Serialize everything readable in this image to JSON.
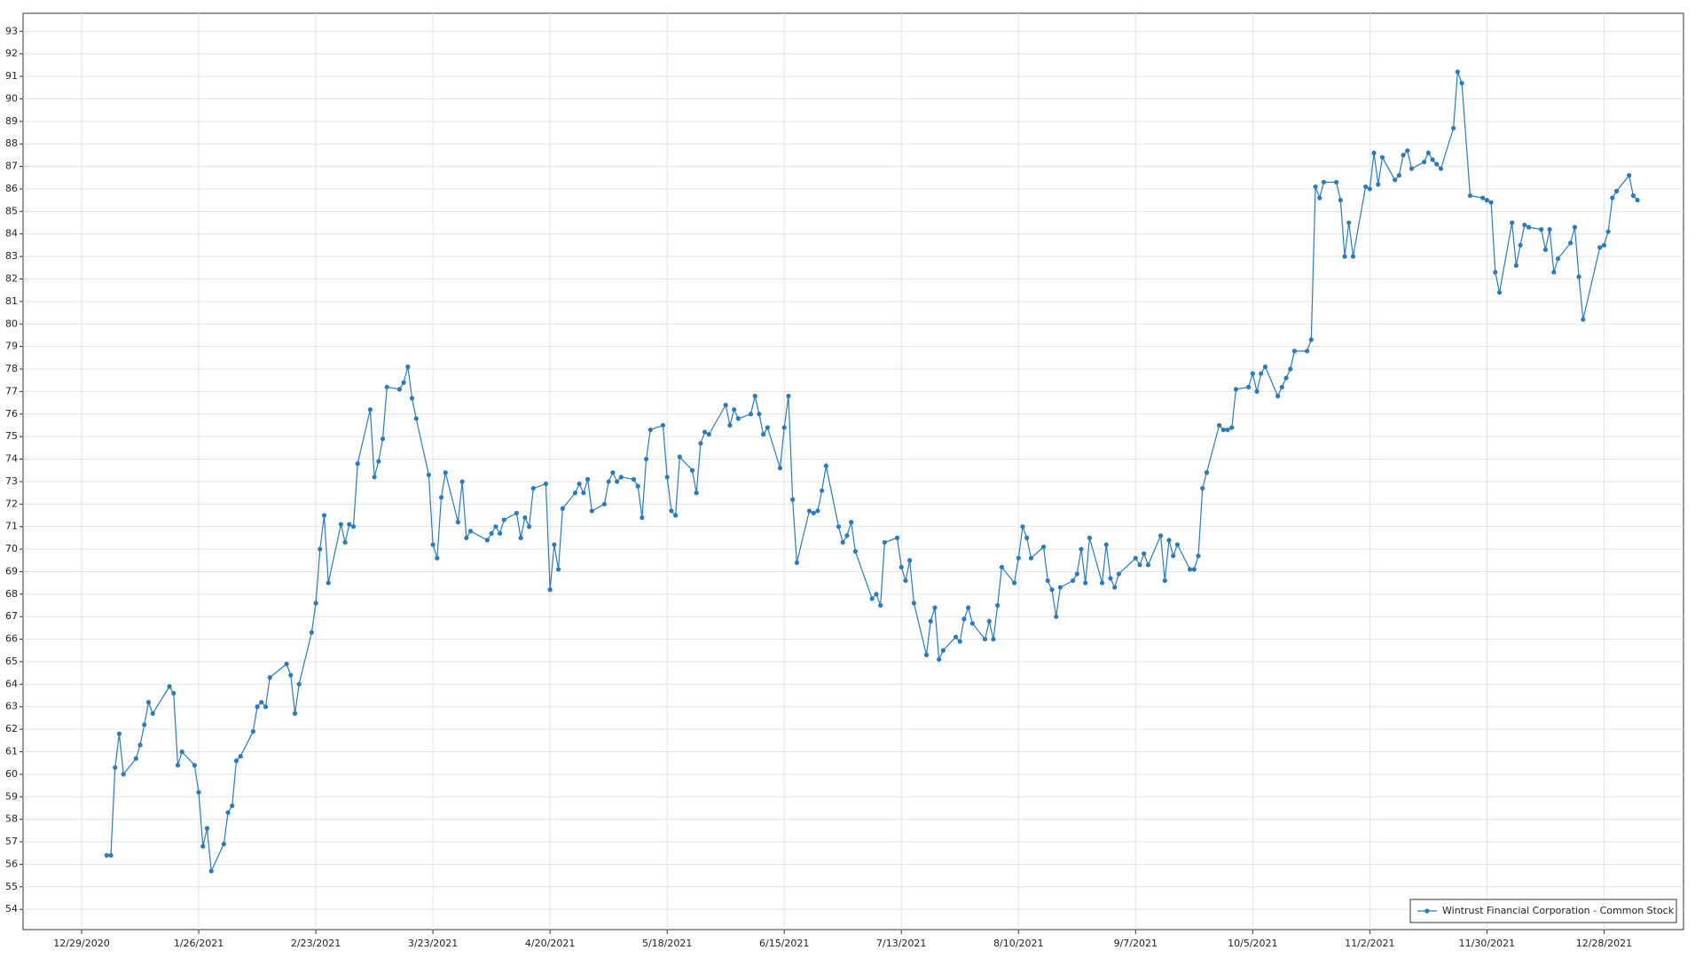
{
  "chart_data": {
    "type": "line",
    "x": [
      "2021-01-04",
      "2021-01-05",
      "2021-01-06",
      "2021-01-07",
      "2021-01-08",
      "2021-01-11",
      "2021-01-12",
      "2021-01-13",
      "2021-01-14",
      "2021-01-15",
      "2021-01-19",
      "2021-01-20",
      "2021-01-21",
      "2021-01-22",
      "2021-01-25",
      "2021-01-26",
      "2021-01-27",
      "2021-01-28",
      "2021-01-29",
      "2021-02-01",
      "2021-02-02",
      "2021-02-03",
      "2021-02-04",
      "2021-02-05",
      "2021-02-08",
      "2021-02-09",
      "2021-02-10",
      "2021-02-11",
      "2021-02-12",
      "2021-02-16",
      "2021-02-17",
      "2021-02-18",
      "2021-02-19",
      "2021-02-22",
      "2021-02-23",
      "2021-02-24",
      "2021-02-25",
      "2021-02-26",
      "2021-03-01",
      "2021-03-02",
      "2021-03-03",
      "2021-03-04",
      "2021-03-05",
      "2021-03-08",
      "2021-03-09",
      "2021-03-10",
      "2021-03-11",
      "2021-03-12",
      "2021-03-15",
      "2021-03-16",
      "2021-03-17",
      "2021-03-18",
      "2021-03-19",
      "2021-03-22",
      "2021-03-23",
      "2021-03-24",
      "2021-03-25",
      "2021-03-26",
      "2021-03-29",
      "2021-03-30",
      "2021-03-31",
      "2021-04-01",
      "2021-04-05",
      "2021-04-06",
      "2021-04-07",
      "2021-04-08",
      "2021-04-09",
      "2021-04-12",
      "2021-04-13",
      "2021-04-14",
      "2021-04-15",
      "2021-04-16",
      "2021-04-19",
      "2021-04-20",
      "2021-04-21",
      "2021-04-22",
      "2021-04-23",
      "2021-04-26",
      "2021-04-27",
      "2021-04-28",
      "2021-04-29",
      "2021-04-30",
      "2021-05-03",
      "2021-05-04",
      "2021-05-05",
      "2021-05-06",
      "2021-05-07",
      "2021-05-10",
      "2021-05-11",
      "2021-05-12",
      "2021-05-13",
      "2021-05-14",
      "2021-05-17",
      "2021-05-18",
      "2021-05-19",
      "2021-05-20",
      "2021-05-21",
      "2021-05-24",
      "2021-05-25",
      "2021-05-26",
      "2021-05-27",
      "2021-05-28",
      "2021-06-01",
      "2021-06-02",
      "2021-06-03",
      "2021-06-04",
      "2021-06-07",
      "2021-06-08",
      "2021-06-09",
      "2021-06-10",
      "2021-06-11",
      "2021-06-14",
      "2021-06-15",
      "2021-06-16",
      "2021-06-17",
      "2021-06-18",
      "2021-06-21",
      "2021-06-22",
      "2021-06-23",
      "2021-06-24",
      "2021-06-25",
      "2021-06-28",
      "2021-06-29",
      "2021-06-30",
      "2021-07-01",
      "2021-07-02",
      "2021-07-06",
      "2021-07-07",
      "2021-07-08",
      "2021-07-09",
      "2021-07-12",
      "2021-07-13",
      "2021-07-14",
      "2021-07-15",
      "2021-07-16",
      "2021-07-19",
      "2021-07-20",
      "2021-07-21",
      "2021-07-22",
      "2021-07-23",
      "2021-07-26",
      "2021-07-27",
      "2021-07-28",
      "2021-07-29",
      "2021-07-30",
      "2021-08-02",
      "2021-08-03",
      "2021-08-04",
      "2021-08-05",
      "2021-08-06",
      "2021-08-09",
      "2021-08-10",
      "2021-08-11",
      "2021-08-12",
      "2021-08-13",
      "2021-08-16",
      "2021-08-17",
      "2021-08-18",
      "2021-08-19",
      "2021-08-20",
      "2021-08-23",
      "2021-08-24",
      "2021-08-25",
      "2021-08-26",
      "2021-08-27",
      "2021-08-30",
      "2021-08-31",
      "2021-09-01",
      "2021-09-02",
      "2021-09-03",
      "2021-09-07",
      "2021-09-08",
      "2021-09-09",
      "2021-09-10",
      "2021-09-13",
      "2021-09-14",
      "2021-09-15",
      "2021-09-16",
      "2021-09-17",
      "2021-09-20",
      "2021-09-21",
      "2021-09-22",
      "2021-09-23",
      "2021-09-24",
      "2021-09-27",
      "2021-09-28",
      "2021-09-29",
      "2021-09-30",
      "2021-10-01",
      "2021-10-04",
      "2021-10-05",
      "2021-10-06",
      "2021-10-07",
      "2021-10-08",
      "2021-10-11",
      "2021-10-12",
      "2021-10-13",
      "2021-10-14",
      "2021-10-15",
      "2021-10-18",
      "2021-10-19",
      "2021-10-20",
      "2021-10-21",
      "2021-10-22",
      "2021-10-25",
      "2021-10-26",
      "2021-10-27",
      "2021-10-28",
      "2021-10-29",
      "2021-11-01",
      "2021-11-02",
      "2021-11-03",
      "2021-11-04",
      "2021-11-05",
      "2021-11-08",
      "2021-11-09",
      "2021-11-10",
      "2021-11-11",
      "2021-11-12",
      "2021-11-15",
      "2021-11-16",
      "2021-11-17",
      "2021-11-18",
      "2021-11-19",
      "2021-11-22",
      "2021-11-23",
      "2021-11-24",
      "2021-11-26",
      "2021-11-29",
      "2021-11-30",
      "2021-12-01",
      "2021-12-02",
      "2021-12-03",
      "2021-12-06",
      "2021-12-07",
      "2021-12-08",
      "2021-12-09",
      "2021-12-10",
      "2021-12-13",
      "2021-12-14",
      "2021-12-15",
      "2021-12-16",
      "2021-12-17",
      "2021-12-20",
      "2021-12-21",
      "2021-12-22",
      "2021-12-23",
      "2021-12-27",
      "2021-12-28",
      "2021-12-29",
      "2021-12-30",
      "2021-12-31",
      "2022-01-03",
      "2022-01-04",
      "2022-01-05"
    ],
    "series": [
      {
        "name": "Wintrust Financial Corporation - Common Stock",
        "color": "#2b7bba",
        "values": [
          56.4,
          56.4,
          60.3,
          61.8,
          60.0,
          60.7,
          61.3,
          62.2,
          63.2,
          62.7,
          63.9,
          63.6,
          60.4,
          61.0,
          60.4,
          59.2,
          56.8,
          57.6,
          55.7,
          56.9,
          58.3,
          58.6,
          60.6,
          60.8,
          61.9,
          63.0,
          63.2,
          63.0,
          64.3,
          64.9,
          64.4,
          62.7,
          64.0,
          66.3,
          67.6,
          70.0,
          71.5,
          68.5,
          71.1,
          70.3,
          71.1,
          71.0,
          73.8,
          76.2,
          73.2,
          73.9,
          74.9,
          77.2,
          77.1,
          77.4,
          78.1,
          76.7,
          75.8,
          73.3,
          70.2,
          69.6,
          72.3,
          73.4,
          71.2,
          73.0,
          70.5,
          70.8,
          70.4,
          70.7,
          71.0,
          70.7,
          71.3,
          71.6,
          70.5,
          71.4,
          71.0,
          72.7,
          72.9,
          68.2,
          70.2,
          69.1,
          71.8,
          72.5,
          72.9,
          72.5,
          73.1,
          71.7,
          72.0,
          73.0,
          73.4,
          73.0,
          73.2,
          73.1,
          72.8,
          71.4,
          74.0,
          75.3,
          75.5,
          73.2,
          71.7,
          71.5,
          74.1,
          73.5,
          72.5,
          74.7,
          75.2,
          75.1,
          76.4,
          75.5,
          76.2,
          75.8,
          76.0,
          76.8,
          76.0,
          75.1,
          75.4,
          73.6,
          75.4,
          76.8,
          72.2,
          69.4,
          71.7,
          71.6,
          71.7,
          72.6,
          73.7,
          71.0,
          70.3,
          70.6,
          71.2,
          69.9,
          67.8,
          68.0,
          67.5,
          70.3,
          70.5,
          69.2,
          68.6,
          69.5,
          67.6,
          65.3,
          66.8,
          67.4,
          65.1,
          65.5,
          66.1,
          65.9,
          66.9,
          67.4,
          66.7,
          66.0,
          66.8,
          66.0,
          67.5,
          69.2,
          68.5,
          69.6,
          71.0,
          70.5,
          69.6,
          70.1,
          68.6,
          68.2,
          67.0,
          68.3,
          68.6,
          68.9,
          70.0,
          68.5,
          70.5,
          68.5,
          70.2,
          68.7,
          68.3,
          68.9,
          69.6,
          69.3,
          69.8,
          69.3,
          70.6,
          68.6,
          70.4,
          69.7,
          70.2,
          69.1,
          69.1,
          69.7,
          72.7,
          73.4,
          75.5,
          75.3,
          75.3,
          75.4,
          77.1,
          77.2,
          77.8,
          77.0,
          77.8,
          78.1,
          76.8,
          77.2,
          77.6,
          78.0,
          78.8,
          78.8,
          79.3,
          86.1,
          85.6,
          86.3,
          86.3,
          85.5,
          83.0,
          84.5,
          83.0,
          86.1,
          86.0,
          87.6,
          86.2,
          87.4,
          86.4,
          86.6,
          87.5,
          87.7,
          86.9,
          87.2,
          87.6,
          87.3,
          87.1,
          86.9,
          88.7,
          91.2,
          90.7,
          85.7,
          85.6,
          85.5,
          85.4,
          82.3,
          81.4,
          84.5,
          82.6,
          83.5,
          84.4,
          84.3,
          84.2,
          83.3,
          84.2,
          82.3,
          82.9,
          83.6,
          84.3,
          82.1,
          80.2,
          83.4,
          83.5,
          84.1,
          85.6,
          85.9,
          86.6,
          85.7,
          85.5
        ]
      }
    ],
    "xlim": [
      "2020-12-15",
      "2022-01-16"
    ],
    "xticks": [
      {
        "value": "2020-12-29",
        "label": "12/29/2020"
      },
      {
        "value": "2021-01-26",
        "label": "1/26/2021"
      },
      {
        "value": "2021-02-23",
        "label": "2/23/2021"
      },
      {
        "value": "2021-03-23",
        "label": "3/23/2021"
      },
      {
        "value": "2021-04-20",
        "label": "4/20/2021"
      },
      {
        "value": "2021-05-18",
        "label": "5/18/2021"
      },
      {
        "value": "2021-06-15",
        "label": "6/15/2021"
      },
      {
        "value": "2021-07-13",
        "label": "7/13/2021"
      },
      {
        "value": "2021-08-10",
        "label": "8/10/2021"
      },
      {
        "value": "2021-09-07",
        "label": "9/7/2021"
      },
      {
        "value": "2021-10-05",
        "label": "10/5/2021"
      },
      {
        "value": "2021-11-02",
        "label": "11/2/2021"
      },
      {
        "value": "2021-11-30",
        "label": "11/30/2021"
      },
      {
        "value": "2021-12-28",
        "label": "12/28/2021"
      }
    ],
    "ylim": [
      53.1,
      93.8
    ],
    "yticks": [
      54,
      55,
      56,
      57,
      58,
      59,
      60,
      61,
      62,
      63,
      64,
      65,
      66,
      67,
      68,
      69,
      70,
      71,
      72,
      73,
      74,
      75,
      76,
      77,
      78,
      79,
      80,
      81,
      82,
      83,
      84,
      85,
      86,
      87,
      88,
      89,
      90,
      91,
      92,
      93
    ],
    "grid": true,
    "legend": "lower right"
  }
}
